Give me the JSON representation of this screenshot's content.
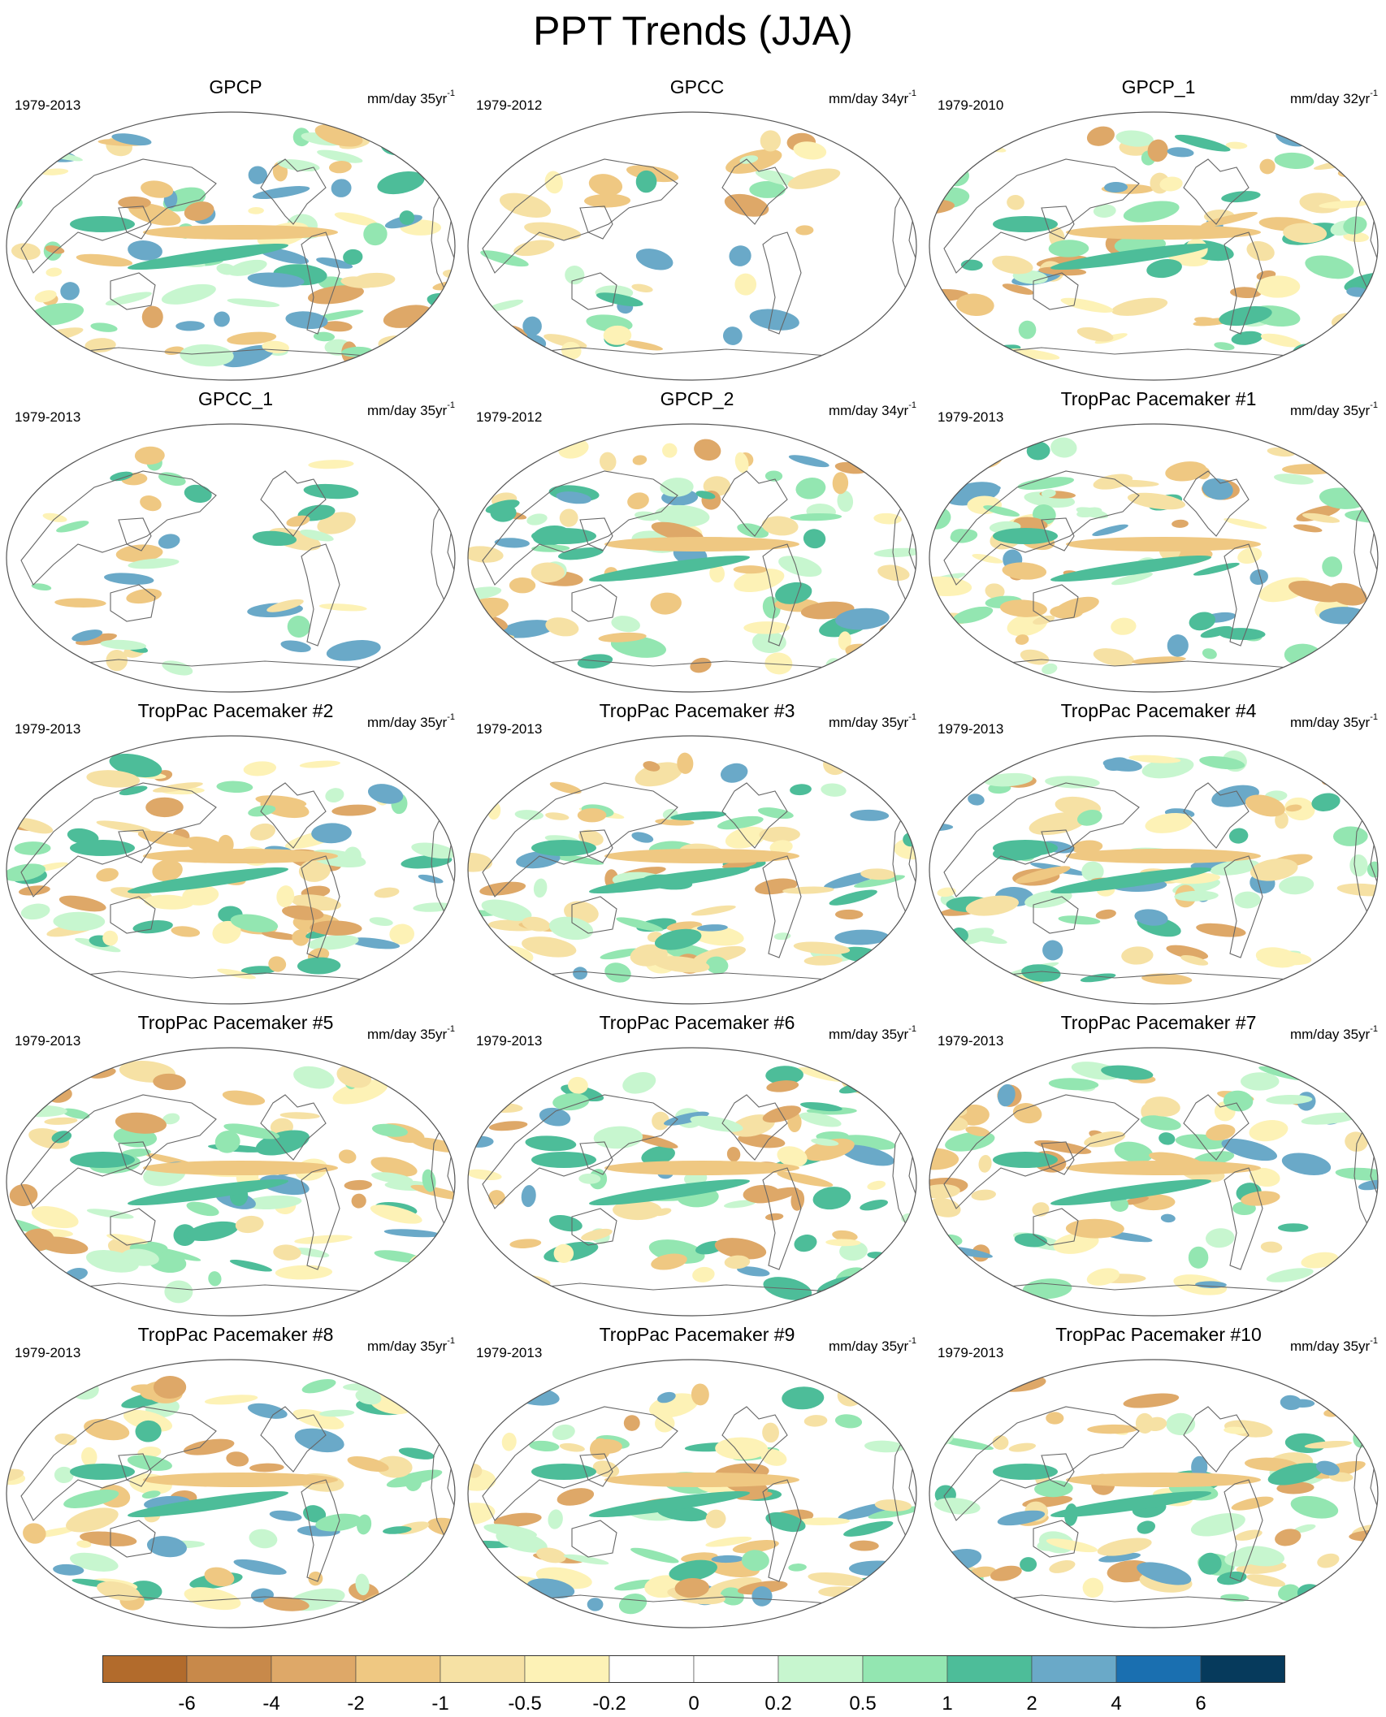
{
  "title": "PPT Trends (JJA)",
  "panels": [
    {
      "title": "GPCP",
      "period": "1979-2013",
      "units": "mm/day 35yr",
      "units_sup": "-1",
      "coverage": "global"
    },
    {
      "title": "GPCC",
      "period": "1979-2012",
      "units": "mm/day 34yr",
      "units_sup": "-1",
      "coverage": "land"
    },
    {
      "title": "GPCP_1",
      "period": "1979-2010",
      "units": "mm/day 32yr",
      "units_sup": "-1",
      "coverage": "global"
    },
    {
      "title": "GPCC_1",
      "period": "1979-2013",
      "units": "mm/day 35yr",
      "units_sup": "-1",
      "coverage": "land"
    },
    {
      "title": "GPCP_2",
      "period": "1979-2012",
      "units": "mm/day 34yr",
      "units_sup": "-1",
      "coverage": "global"
    },
    {
      "title": "TropPac Pacemaker #1",
      "period": "1979-2013",
      "units": "mm/day 35yr",
      "units_sup": "-1",
      "coverage": "global"
    },
    {
      "title": "TropPac Pacemaker #2",
      "period": "1979-2013",
      "units": "mm/day 35yr",
      "units_sup": "-1",
      "coverage": "global"
    },
    {
      "title": "TropPac Pacemaker #3",
      "period": "1979-2013",
      "units": "mm/day 35yr",
      "units_sup": "-1",
      "coverage": "global"
    },
    {
      "title": "TropPac Pacemaker #4",
      "period": "1979-2013",
      "units": "mm/day 35yr",
      "units_sup": "-1",
      "coverage": "global"
    },
    {
      "title": "TropPac Pacemaker #5",
      "period": "1979-2013",
      "units": "mm/day 35yr",
      "units_sup": "-1",
      "coverage": "global"
    },
    {
      "title": "TropPac Pacemaker #6",
      "period": "1979-2013",
      "units": "mm/day 35yr",
      "units_sup": "-1",
      "coverage": "global"
    },
    {
      "title": "TropPac Pacemaker #7",
      "period": "1979-2013",
      "units": "mm/day 35yr",
      "units_sup": "-1",
      "coverage": "global"
    },
    {
      "title": "TropPac Pacemaker #8",
      "period": "1979-2013",
      "units": "mm/day 35yr",
      "units_sup": "-1",
      "coverage": "global"
    },
    {
      "title": "TropPac Pacemaker #9",
      "period": "1979-2013",
      "units": "mm/day 35yr",
      "units_sup": "-1",
      "coverage": "global"
    },
    {
      "title": "TropPac Pacemaker #10",
      "period": "1979-2013",
      "units": "mm/day 35yr",
      "units_sup": "-1",
      "coverage": "global"
    }
  ],
  "colorbar": {
    "colors": [
      "#b26b2c",
      "#c8894a",
      "#dea868",
      "#efc882",
      "#f6e1a4",
      "#fdf2b6",
      "#ffffff",
      "#ffffff",
      "#c7f6cf",
      "#93e6b1",
      "#4dbd99",
      "#6aa9c8",
      "#1a6fb0",
      "#063a5c"
    ],
    "labels": [
      "-6",
      "-4",
      "-2",
      "-1",
      "-0.5",
      "-0.2",
      "0",
      "0.2",
      "0.5",
      "1",
      "2",
      "4",
      "6"
    ]
  }
}
